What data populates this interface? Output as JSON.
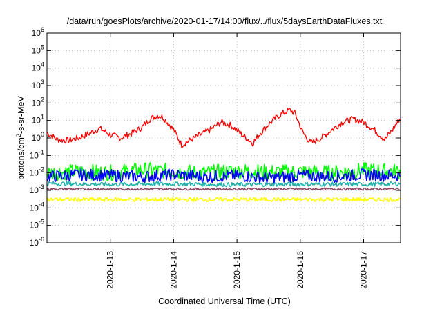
{
  "chart_data": {
    "type": "line",
    "title": "/data/run/goesPlots/archive/2020-01-17/14:00/flux/../flux/5daysEarthDataFluxes.txt",
    "xlabel": "Coordinated Universal Time (UTC)",
    "ylabel": {
      "pre": "protons/cm",
      "sup": "2",
      "post": "-s-sr-MeV"
    },
    "x_start": "2020-01-12T00:00",
    "x_end": "2020-01-17T14:00",
    "xticks": [
      {
        "date": "2020-01-13",
        "label": "2020-1-13"
      },
      {
        "date": "2020-01-14",
        "label": "2020-1-14"
      },
      {
        "date": "2020-01-15",
        "label": "2020-1-15"
      },
      {
        "date": "2020-01-16",
        "label": "2020-1-16"
      },
      {
        "date": "2020-01-17",
        "label": "2020-1-17"
      }
    ],
    "y_scale": "log",
    "ylim": [
      1e-06,
      1000000.0
    ],
    "yticks": [
      {
        "base": "10",
        "exp": "-6"
      },
      {
        "base": "10",
        "exp": "-5"
      },
      {
        "base": "10",
        "exp": "-4"
      },
      {
        "base": "10",
        "exp": "-3"
      },
      {
        "base": "10",
        "exp": "-2"
      },
      {
        "base": "10",
        "exp": "-1"
      },
      {
        "base": "10",
        "exp": "0"
      },
      {
        "base": "10",
        "exp": "1"
      },
      {
        "base": "10",
        "exp": "2"
      },
      {
        "base": "10",
        "exp": "3"
      },
      {
        "base": "10",
        "exp": "4"
      },
      {
        "base": "10",
        "exp": "5"
      },
      {
        "base": "10",
        "exp": "6"
      }
    ],
    "grid": true,
    "legend": "none",
    "series": [
      {
        "color": "#ff0000",
        "x": [
          "2020-01-12T00:00",
          "2020-01-12T04:00",
          "2020-01-12T08:00",
          "2020-01-12T12:00",
          "2020-01-12T16:00",
          "2020-01-12T20:00",
          "2020-01-13T00:00",
          "2020-01-13T04:00",
          "2020-01-13T08:00",
          "2020-01-13T12:00",
          "2020-01-13T15:00",
          "2020-01-13T18:00",
          "2020-01-13T20:00",
          "2020-01-14T00:00",
          "2020-01-14T03:00",
          "2020-01-14T06:00",
          "2020-01-14T10:00",
          "2020-01-14T14:00",
          "2020-01-14T18:00",
          "2020-01-14T22:00",
          "2020-01-15T02:00",
          "2020-01-15T06:00",
          "2020-01-15T09:00",
          "2020-01-15T12:00",
          "2020-01-15T16:00",
          "2020-01-15T20:00",
          "2020-01-15T22:00",
          "2020-01-16T01:00",
          "2020-01-16T04:00",
          "2020-01-16T08:00",
          "2020-01-16T12:00",
          "2020-01-16T16:00",
          "2020-01-16T20:00",
          "2020-01-17T00:00",
          "2020-01-17T04:00",
          "2020-01-17T08:00",
          "2020-01-17T11:00",
          "2020-01-17T14:00"
        ],
        "y": [
          2.0,
          0.8,
          0.7,
          1.0,
          1.8,
          3.5,
          1.5,
          1.0,
          1.8,
          4.0,
          12,
          20,
          15,
          3.0,
          0.4,
          0.7,
          1.5,
          3.0,
          8.0,
          5.0,
          1.5,
          0.5,
          2.0,
          6.0,
          20,
          40,
          25,
          2.0,
          0.5,
          1.0,
          3.0,
          8.0,
          12,
          8.0,
          3.0,
          0.8,
          3.0,
          15
        ]
      },
      {
        "color": "#00ff00",
        "x": [
          "2020-01-12T00:00",
          "2020-01-12T12:00",
          "2020-01-13T00:00",
          "2020-01-13T12:00",
          "2020-01-14T00:00",
          "2020-01-14T12:00",
          "2020-01-15T00:00",
          "2020-01-15T12:00",
          "2020-01-16T00:00",
          "2020-01-16T12:00",
          "2020-01-17T00:00",
          "2020-01-17T14:00"
        ],
        "y": [
          0.01,
          0.012,
          0.01,
          0.015,
          0.012,
          0.01,
          0.013,
          0.011,
          0.012,
          0.01,
          0.014,
          0.012
        ]
      },
      {
        "color": "#0000ff",
        "x": [
          "2020-01-12T00:00",
          "2020-01-12T12:00",
          "2020-01-13T00:00",
          "2020-01-13T12:00",
          "2020-01-14T00:00",
          "2020-01-14T12:00",
          "2020-01-15T00:00",
          "2020-01-15T12:00",
          "2020-01-16T00:00",
          "2020-01-16T12:00",
          "2020-01-17T00:00",
          "2020-01-17T14:00"
        ],
        "y": [
          0.006,
          0.008,
          0.007,
          0.006,
          0.008,
          0.006,
          0.007,
          0.005,
          0.007,
          0.006,
          0.008,
          0.007
        ]
      },
      {
        "color": "#20b2aa",
        "x": [
          "2020-01-12T00:00",
          "2020-01-13T00:00",
          "2020-01-14T00:00",
          "2020-01-15T00:00",
          "2020-01-16T00:00",
          "2020-01-17T00:00",
          "2020-01-17T14:00"
        ],
        "y": [
          0.0025,
          0.0022,
          0.0024,
          0.0021,
          0.0023,
          0.0022,
          0.0024
        ]
      },
      {
        "color": "#8b4560",
        "x": [
          "2020-01-12T00:00",
          "2020-01-13T00:00",
          "2020-01-14T00:00",
          "2020-01-15T00:00",
          "2020-01-16T00:00",
          "2020-01-17T00:00",
          "2020-01-17T14:00"
        ],
        "y": [
          0.0012,
          0.0012,
          0.0012,
          0.0012,
          0.0012,
          0.0012,
          0.0012
        ]
      },
      {
        "color": "#ffff00",
        "x": [
          "2020-01-12T00:00",
          "2020-01-13T00:00",
          "2020-01-14T00:00",
          "2020-01-15T00:00",
          "2020-01-16T00:00",
          "2020-01-17T00:00",
          "2020-01-17T14:00"
        ],
        "y": [
          0.0003,
          0.0003,
          0.0003,
          0.0003,
          0.0003,
          0.0003,
          0.0003
        ]
      }
    ]
  }
}
